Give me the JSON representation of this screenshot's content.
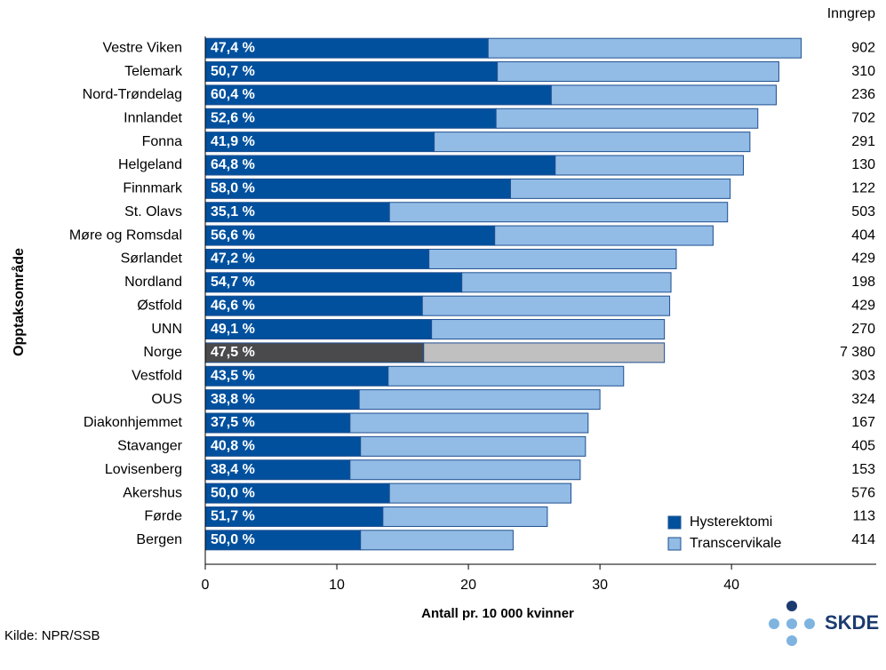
{
  "chart_data": {
    "type": "stacked_bar_horizontal",
    "y_label": "Opptaksområde",
    "x_label": "Antall pr. 10 000 kvinner",
    "categories": [
      "Vestre Viken",
      "Telemark",
      "Nord-Trøndelag",
      "Innlandet",
      "Fonna",
      "Helgeland",
      "Finnmark",
      "St. Olavs",
      "Møre og Romsdal",
      "Sørlandet",
      "Nordland",
      "Østfold",
      "UNN",
      "Norge",
      "Vestfold",
      "OUS",
      "Diakonhjemmet",
      "Stavanger",
      "Lovisenberg",
      "Akershus",
      "Førde",
      "Bergen"
    ],
    "series": [
      {
        "name": "Hysterektomi",
        "color": "#00509e",
        "values": [
          21.5,
          22.2,
          26.3,
          22.1,
          17.4,
          26.6,
          23.2,
          14.0,
          22.0,
          17.0,
          19.5,
          16.5,
          17.2,
          16.6,
          13.9,
          11.7,
          11.0,
          11.8,
          11.0,
          14.0,
          13.5,
          11.8
        ]
      },
      {
        "name": "Transcervikale",
        "color": "#92bce6",
        "values": [
          23.8,
          21.4,
          17.1,
          19.9,
          24.0,
          14.3,
          16.7,
          25.7,
          16.6,
          18.8,
          15.9,
          18.8,
          17.7,
          18.3,
          17.9,
          18.3,
          18.1,
          17.1,
          17.5,
          13.8,
          12.5,
          11.6
        ]
      }
    ],
    "highlight": {
      "category_index": 13,
      "colors": [
        "#4a4a4d",
        "#c0c0c0"
      ]
    },
    "share_labels": [
      "47,4 %",
      "50,7 %",
      "60,4 %",
      "52,6 %",
      "41,9 %",
      "64,8 %",
      "58,0 %",
      "35,1 %",
      "56,6 %",
      "47,2 %",
      "54,7 %",
      "46,6 %",
      "49,1 %",
      "47,5 %",
      "43,5 %",
      "38,8 %",
      "37,5 %",
      "40,8 %",
      "38,4 %",
      "50,0 %",
      "51,7 %",
      "50,0 %"
    ],
    "count_header": "Inngrep",
    "counts": [
      "902",
      "310",
      "236",
      "702",
      "291",
      "130",
      "122",
      "503",
      "404",
      "429",
      "198",
      "429",
      "270",
      "7 380",
      "303",
      "324",
      "167",
      "405",
      "153",
      "576",
      "113",
      "414"
    ],
    "xlim": [
      0,
      51
    ],
    "xticks": [
      0,
      10,
      20,
      30,
      40
    ],
    "source": "Kilde: NPR/SSB",
    "logo": "SKDE"
  }
}
